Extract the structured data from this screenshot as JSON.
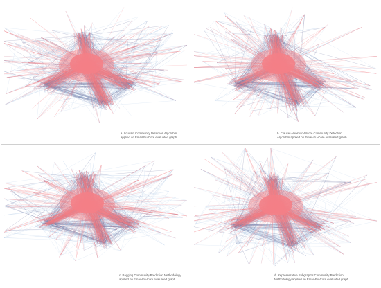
{
  "panels": [
    {
      "id": "a",
      "caption_line1": "a. Louvain Community Detection Algorithm",
      "caption_line2": "applied on Email-Eu-Core evaluated graph"
    },
    {
      "id": "b",
      "caption_line1": "b. Clauset-Newman-Moore Community Detection",
      "caption_line2": "Algorithm applied on Email-Eu-Core evaluated graph"
    },
    {
      "id": "c",
      "caption_line1": "c. Bagging Community-Prediction Methodology",
      "caption_line2": "applied on Email-Eu-Core evaluated graph"
    },
    {
      "id": "d",
      "caption_line1": "d. Representative Subgraph's Community Prediction",
      "caption_line2": "Methodology applied on Email-Eu-Core evaluated graph"
    }
  ],
  "colors": {
    "edge_red": "#f47a80",
    "edge_blue": "#8fb2dd",
    "edge_dark": "#6a6f9c",
    "core": "#f48087",
    "divider": "#d0d0d0"
  }
}
